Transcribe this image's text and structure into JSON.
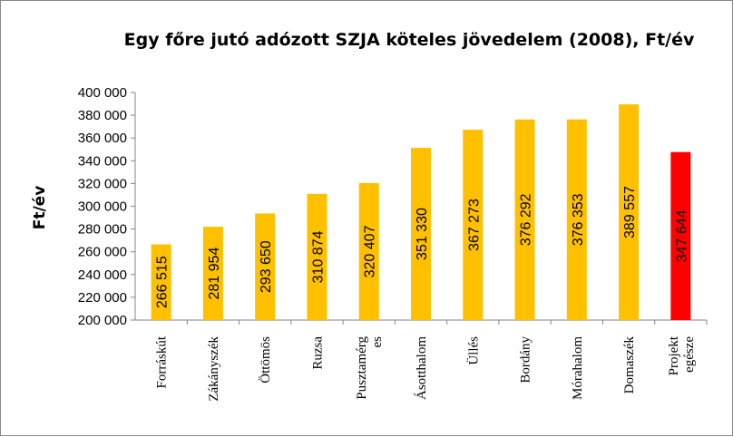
{
  "chart_data": {
    "type": "bar",
    "title": "Egy főre jutó adózott SZJA köteles jövedelem (2008), Ft/év",
    "xlabel": "",
    "ylabel": "Ft/év",
    "ylim": [
      200000,
      400000
    ],
    "ytick_step": 20000,
    "yticks": [
      "200 000",
      "220 000",
      "240 000",
      "260 000",
      "280 000",
      "300 000",
      "320 000",
      "340 000",
      "360 000",
      "380 000",
      "400 000"
    ],
    "grid": false,
    "legend": "none",
    "categories": [
      [
        "Forráskút"
      ],
      [
        "Zákányszék"
      ],
      [
        "Öttömös"
      ],
      [
        "Ruzsa"
      ],
      [
        "Pusztamérg",
        "es"
      ],
      [
        "Ásotthalom"
      ],
      [
        "Üllés"
      ],
      [
        "Bordány"
      ],
      [
        "Mórahalom"
      ],
      [
        "Domaszék"
      ],
      [
        "Projekt",
        "egésze"
      ]
    ],
    "values": [
      266515,
      281954,
      293650,
      310874,
      320407,
      351330,
      367273,
      376292,
      376353,
      389557,
      347644
    ],
    "data_labels": [
      "266 515",
      "281 954",
      "293 650",
      "310 874",
      "320 407",
      "351 330",
      "367 273",
      "376 292",
      "376 353",
      "389 557",
      "347 644"
    ],
    "colors": [
      "#ffc000",
      "#ffc000",
      "#ffc000",
      "#ffc000",
      "#ffc000",
      "#ffc000",
      "#ffc000",
      "#ffc000",
      "#ffc000",
      "#ffc000",
      "#ff0000"
    ]
  }
}
